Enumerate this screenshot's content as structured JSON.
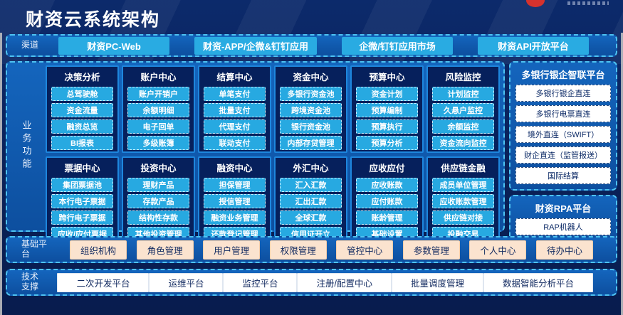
{
  "header": {
    "title": "财资云系统架构"
  },
  "channels": {
    "label": "渠道",
    "items": [
      "财资PC-Web",
      "财资-APP/企微&钉钉应用",
      "企微/钉钉应用市场",
      "财资API开放平台"
    ]
  },
  "business": {
    "label": "业务功能",
    "panels": [
      {
        "title": "决策分析",
        "items": [
          "总驾驶舱",
          "资金流量",
          "融资总览",
          "BI报表"
        ]
      },
      {
        "title": "账户中心",
        "items": [
          "账户开销户",
          "余额明细",
          "电子回单",
          "多级账簿"
        ]
      },
      {
        "title": "结算中心",
        "items": [
          "单笔支付",
          "批量支付",
          "代理支付",
          "联动支付"
        ]
      },
      {
        "title": "资金中心",
        "items": [
          "多银行资金池",
          "跨境资金池",
          "银行资金池",
          "内部存贷管理"
        ]
      },
      {
        "title": "预算中心",
        "items": [
          "资金计划",
          "预算编制",
          "预算执行",
          "预算分析"
        ]
      },
      {
        "title": "风险监控",
        "items": [
          "计划监控",
          "久悬户监控",
          "余额监控",
          "资金流向监控"
        ]
      },
      {
        "title": "票据中心",
        "items": [
          "集团票据池",
          "本行电子票据",
          "跨行电子票据",
          "应收/应付票据"
        ]
      },
      {
        "title": "投资中心",
        "items": [
          "理财产品",
          "存款产品",
          "结构性存款",
          "其他投资管理"
        ]
      },
      {
        "title": "融资中心",
        "items": [
          "担保管理",
          "授信管理",
          "融资业务管理",
          "还款登记管理"
        ]
      },
      {
        "title": "外汇中心",
        "items": [
          "汇入汇款",
          "汇出汇款",
          "全球汇款",
          "信用证开立"
        ]
      },
      {
        "title": "应收应付",
        "items": [
          "应收账款",
          "应付账款",
          "账龄管理",
          "基础设置"
        ]
      },
      {
        "title": "供应链金融",
        "items": [
          "成员单位管理",
          "应收账款管理",
          "供应链对接",
          "投融交易"
        ]
      }
    ]
  },
  "bank_platform": {
    "title": "多银行银企智联平台",
    "items": [
      "多银行银企直连",
      "多银行电票直连",
      "境外直连（SWIFT）",
      "财企直连（监管报送）",
      "国际结算"
    ]
  },
  "rpa_platform": {
    "title": "财资RPA平台",
    "items": [
      "RAP机器人"
    ]
  },
  "base_platform": {
    "label": "基础平台",
    "items": [
      "组织机构",
      "角色管理",
      "用户管理",
      "权限管理",
      "管控中心",
      "参数管理",
      "个人中心",
      "待办中心"
    ]
  },
  "tech_support": {
    "label": "技术支撑",
    "items": [
      "二次开发平台",
      "运维平台",
      "监控平台",
      "注册/配置中心",
      "批量调度管理",
      "数据智能分析平台"
    ]
  },
  "colors": {
    "background_navy": "#0a2158",
    "container_blue": "#1160b4",
    "dash_border_cyan": "#4ec3f2",
    "pill_cyan": "#27a9e1",
    "panel_fill": "#06205c",
    "panel_border": "#1e86dd",
    "peach_box": "#fbe3cf",
    "white_box": "#ffffff",
    "logo_red": "#d5322d",
    "text_white": "#ffffff",
    "text_navy": "#122a60"
  }
}
